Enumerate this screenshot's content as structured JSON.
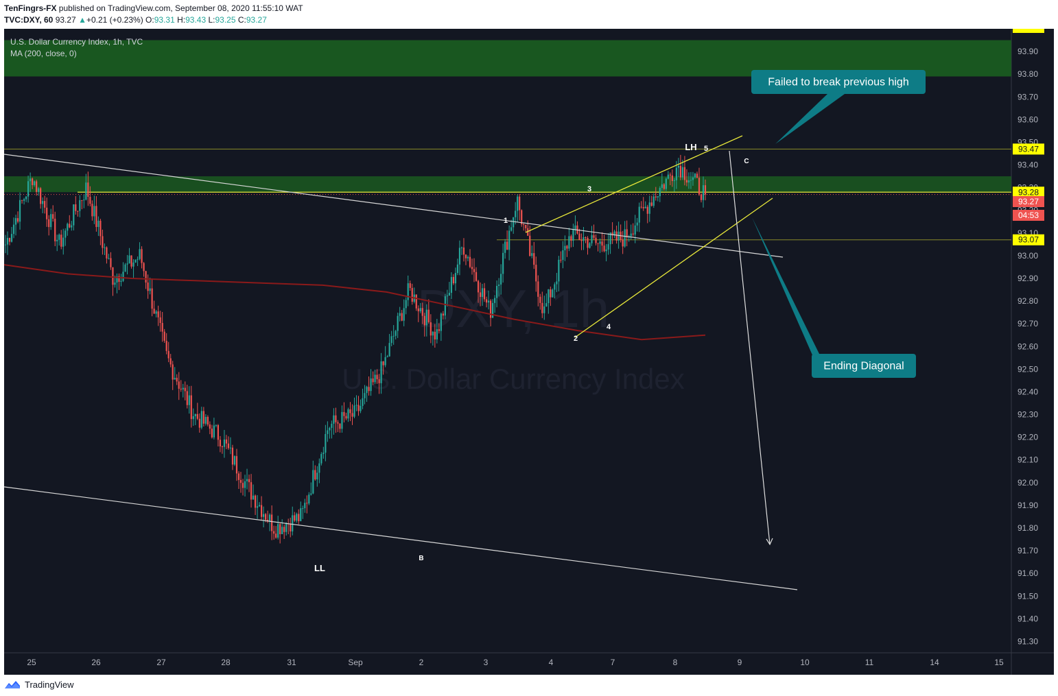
{
  "header": {
    "author": "TenFingrs-FX",
    "published_text": "published on TradingView.com, September 08, 2020 11:55:10 WAT",
    "symbol": "TVC:DXY, 60",
    "last": "93.27",
    "change": "+0.21 (+0.23%)",
    "o_label": "O:",
    "o_val": "93.31",
    "h_label": "H:",
    "h_val": "93.43",
    "l_label": "L:",
    "l_val": "93.25",
    "c_label": "C:",
    "c_val": "93.27"
  },
  "legend": {
    "title": "U.S. Dollar Currency Index, 1h, TVC",
    "indicator": "MA (200, close, 0)"
  },
  "watermark": {
    "symbol": "DXY, 1h",
    "name": "U.S. Dollar Currency Index"
  },
  "annotations": {
    "failed_callout": "Failed to break previous high",
    "ending_callout": "Ending Diagonal",
    "lh": "LH",
    "ll": "LL",
    "wave_labels": [
      "1",
      "2",
      "3",
      "4",
      "5"
    ],
    "b": "B",
    "c": "C"
  },
  "price_axis": {
    "ticks": [
      "93.90",
      "93.80",
      "93.70",
      "93.60",
      "93.50",
      "93.40",
      "93.30",
      "93.20",
      "93.10",
      "93.00",
      "92.90",
      "92.80",
      "92.70",
      "92.60",
      "92.50",
      "92.40",
      "92.30",
      "92.20",
      "92.10",
      "92.00",
      "91.90",
      "91.80",
      "91.70",
      "91.60",
      "91.50",
      "91.40",
      "91.30"
    ],
    "badges": [
      {
        "text": "93.47",
        "bg": "#ffff00",
        "fg": "#131722"
      },
      {
        "text": "93.28",
        "bg": "#ffff00",
        "fg": "#131722"
      },
      {
        "text": "93.27",
        "bg": "#ef5350",
        "fg": "#ffffff"
      },
      {
        "text": "04:53",
        "bg": "#ef5350",
        "fg": "#ffffff"
      },
      {
        "text": "93.07",
        "bg": "#ffff00",
        "fg": "#131722"
      }
    ]
  },
  "time_axis": {
    "ticks": [
      "25",
      "26",
      "27",
      "28",
      "31",
      "Sep",
      "2",
      "3",
      "4",
      "7",
      "8",
      "9",
      "10",
      "11",
      "14",
      "15"
    ]
  },
  "footer": {
    "brand": "TradingView"
  },
  "colors": {
    "background": "#131722",
    "bull": "#26a69a",
    "bear": "#ef5350",
    "ma": "#8b1a1a",
    "zone": "#1b5e20",
    "callout": "#0e7c86",
    "wedge": "#e8e83a"
  },
  "chart_data": {
    "type": "candlestick",
    "title": "U.S. Dollar Currency Index, 1h, TVC",
    "ylim": [
      91.25,
      94.0
    ],
    "x_categories": [
      "25",
      "26",
      "27",
      "28",
      "31",
      "Sep",
      "2",
      "3",
      "4",
      "7",
      "8",
      "9",
      "10",
      "11",
      "14",
      "15"
    ],
    "supply_zone": [
      93.79,
      93.95
    ],
    "demand_zone": [
      93.28,
      93.35
    ],
    "levels": [
      93.47,
      93.28,
      93.07
    ],
    "path_waypoints": [
      93.05,
      93.35,
      93.05,
      93.3,
      92.9,
      93.0,
      92.55,
      92.3,
      92.2,
      91.98,
      91.8,
      91.85,
      92.25,
      92.3,
      92.5,
      92.85,
      92.65,
      93.05,
      92.75,
      93.25,
      92.75,
      93.1,
      93.05,
      93.08,
      93.25,
      93.4,
      93.27
    ],
    "ma200_waypoints": [
      92.96,
      92.92,
      92.9,
      92.89,
      92.88,
      92.87,
      92.84,
      92.78,
      92.72,
      92.67,
      92.63,
      92.65
    ],
    "last_price": 93.27
  }
}
